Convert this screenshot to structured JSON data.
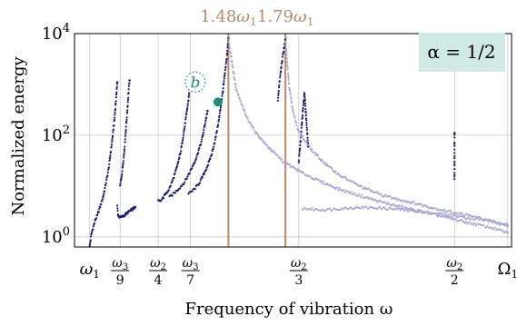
{
  "chart_data": {
    "type": "scatter",
    "xlabel": "Frequency of vibration ω",
    "ylabel": "Normalized energy",
    "yscale": "log",
    "xlim": [
      0.0,
      2.3
    ],
    "ylim_log10": [
      -0.2,
      4.0
    ],
    "grid": true,
    "y_ticks": [
      {
        "value": 1,
        "base": "10",
        "exp": "0"
      },
      {
        "value": 100,
        "base": "10",
        "exp": "2"
      },
      {
        "value": 10000,
        "base": "10",
        "exp": "4"
      }
    ],
    "x_ticks": [
      {
        "value": 0.08,
        "kind": "sub",
        "main": "ω",
        "sub": "1"
      },
      {
        "value": 0.24,
        "kind": "frac",
        "num_main": "ω",
        "num_sub": "3",
        "den": "9"
      },
      {
        "value": 0.44,
        "kind": "frac",
        "num_main": "ω",
        "num_sub": "2",
        "den": "4"
      },
      {
        "value": 0.61,
        "kind": "frac",
        "num_main": "ω",
        "num_sub": "3",
        "den": "7"
      },
      {
        "value": 1.18,
        "kind": "frac",
        "num_main": "ω",
        "num_sub": "2",
        "den": "3"
      },
      {
        "value": 2.0,
        "kind": "frac",
        "num_main": "ω",
        "num_sub": "2",
        "den": "2"
      },
      {
        "value": 2.28,
        "kind": "sub",
        "main": "Ω",
        "sub": "1"
      }
    ],
    "vertical_markers": [
      {
        "x": 0.81,
        "label_coef": "1.48",
        "label_main": "ω",
        "label_sub": "1",
        "color": "#b8896a"
      },
      {
        "x": 1.11,
        "label_coef": "1.79",
        "label_main": "ω",
        "label_sub": "1",
        "color": "#b8896a"
      }
    ],
    "annotation": {
      "text": "α = 1/2",
      "background": "#cfe9e5"
    },
    "marked_point": {
      "x": 0.755,
      "y": 450,
      "label": "b",
      "color": "#1a8c7e"
    },
    "series": [
      {
        "color": "#1a1a6e",
        "segments": [
          {
            "xs": [
              0.08,
              0.09,
              0.1,
              0.11,
              0.12,
              0.13,
              0.14,
              0.15,
              0.16,
              0.17,
              0.18,
              0.19,
              0.2,
              0.21,
              0.22,
              0.225
            ],
            "ys": [
              0.65,
              1.2,
              1.6,
              2.2,
              2.6,
              3.5,
              4.5,
              6,
              9,
              14,
              22,
              45,
              90,
              200,
              600,
              1100
            ]
          },
          {
            "xs": [
              0.225,
              0.23,
              0.24,
              0.25,
              0.26,
              0.27,
              0.28,
              0.29,
              0.3,
              0.31,
              0.32
            ],
            "ys": [
              4,
              2.6,
              2.4,
              2.5,
              2.6,
              2.8,
              3.0,
              3.2,
              3.4,
              3.6,
              3.8
            ]
          },
          {
            "xs": [
              0.24,
              0.25,
              0.26,
              0.27,
              0.28,
              0.285,
              0.29
            ],
            "ys": [
              10,
              18,
              40,
              120,
              400,
              800,
              1200
            ]
          },
          {
            "xs": [
              0.44,
              0.46,
              0.48,
              0.5,
              0.52,
              0.54,
              0.56,
              0.58,
              0.6,
              0.61
            ],
            "ys": [
              5,
              5.5,
              7,
              9,
              14,
              24,
              50,
              150,
              500,
              1500
            ]
          },
          {
            "xs": [
              0.5,
              0.52,
              0.55,
              0.58,
              0.61,
              0.64,
              0.67,
              0.7
            ],
            "ys": [
              6,
              7,
              9,
              12,
              20,
              35,
              80,
              300
            ]
          },
          {
            "xs": [
              0.6,
              0.62,
              0.64,
              0.66,
              0.68,
              0.7,
              0.72,
              0.74,
              0.76,
              0.78,
              0.8,
              0.81
            ],
            "ys": [
              7,
              8,
              9.5,
              12,
              17,
              25,
              40,
              80,
              200,
              700,
              3000,
              8000
            ]
          },
          {
            "xs": [
              1.07,
              1.08,
              1.09,
              1.1,
              1.11
            ],
            "ys": [
              500,
              1200,
              2500,
              4500,
              8000
            ]
          },
          {
            "xs": [
              1.18,
              1.19,
              1.2,
              1.21,
              1.22,
              1.23
            ],
            "ys": [
              30,
              80,
              250,
              700,
              200,
              60
            ]
          },
          {
            "xs": [
              2.0,
              2.0
            ],
            "ys": [
              13,
              110
            ]
          }
        ]
      },
      {
        "color": "#a9a9d0",
        "segments": [
          {
            "xs": [
              0.81,
              0.85,
              0.9,
              0.95,
              1.0,
              1.05,
              1.1,
              1.2,
              1.3,
              1.4,
              1.5,
              1.6,
              1.7,
              1.8,
              1.9,
              2.0,
              2.1,
              2.2,
              2.28
            ],
            "ys": [
              8000,
              800,
              250,
              120,
              70,
              45,
              30,
              18,
              12,
              8.5,
              6.5,
              5,
              4,
              3.3,
              2.7,
              2.2,
              1.8,
              1.5,
              1.2
            ]
          },
          {
            "xs": [
              1.11,
              1.13,
              1.15,
              1.17,
              1.2,
              1.25,
              1.3,
              1.35,
              1.4,
              1.5,
              1.6,
              1.7,
              1.8,
              1.9,
              2.0,
              2.1,
              2.2,
              2.28
            ],
            "ys": [
              8000,
              900,
              300,
              150,
              90,
              50,
              32,
              22,
              16,
              10,
              7,
              5.5,
              4.5,
              3.6,
              3.0,
              2.5,
              2.0,
              1.6
            ]
          },
          {
            "xs": [
              1.2,
              1.3,
              1.4,
              1.5,
              1.6,
              1.7,
              1.8,
              1.9,
              2.0,
              2.1,
              2.2,
              2.28
            ],
            "ys": [
              3.6,
              3.4,
              3.6,
              3.8,
              3.7,
              3.5,
              3.2,
              2.9,
              2.6,
              2.3,
              2.0,
              1.7
            ]
          }
        ]
      }
    ]
  }
}
